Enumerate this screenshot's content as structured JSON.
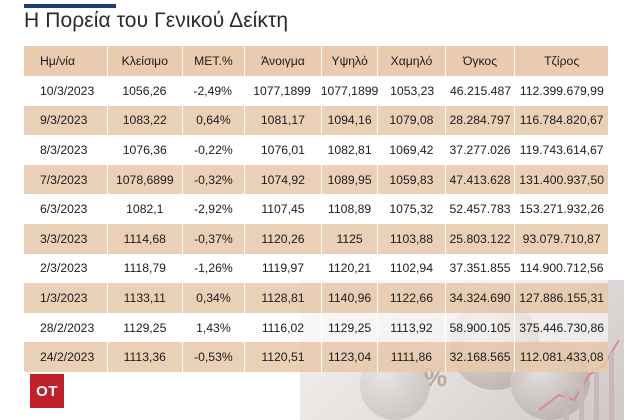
{
  "title": "Η Πορεία του Γενικού Δείκτη",
  "logo": "OT",
  "background_glyph": "%",
  "colors": {
    "header_row": "#eacbb0",
    "shaded_row": "#e8c8ac",
    "logo": "#c0202a",
    "title_rule": "#1f3c78"
  },
  "table": {
    "headers": [
      "Ημ/νία",
      "Κλείσιμο",
      "ΜΕΤ.%",
      "Άνοιγμα",
      "Υψηλό",
      "Χαμηλό",
      "Όγκος",
      "Τζίρος"
    ],
    "rows": [
      [
        "10/3/2023",
        "1056,26",
        "-2,49%",
        "1077,1899",
        "1077,1899",
        "1053,23",
        "46.215.487",
        "112.399.679,99"
      ],
      [
        "9/3/2023",
        "1083,22",
        "0,64%",
        "1081,17",
        "1094,16",
        "1079,08",
        "28.284.797",
        "116.784.820,67"
      ],
      [
        "8/3/2023",
        "1076,36",
        "-0,22%",
        "1076,01",
        "1082,81",
        "1069,42",
        "37.277.026",
        "119.743.614,67"
      ],
      [
        "7/3/2023",
        "1078,6899",
        "-0,32%",
        "1074,92",
        "1089,95",
        "1059,83",
        "47.413.628",
        "131.400.937,50"
      ],
      [
        "6/3/2023",
        "1082,1",
        "-2,92%",
        "1107,45",
        "1108,89",
        "1075,32",
        "52.457.783",
        "153.271.932,26"
      ],
      [
        "3/3/2023",
        "1114,68",
        "-0,37%",
        "1120,26",
        "1125",
        "1103,88",
        "25.803.122",
        "93.079.710,87"
      ],
      [
        "2/3/2023",
        "1118,79",
        "-1,26%",
        "1119,97",
        "1120,21",
        "1102,94",
        "37.351.855",
        "114.900.712,56"
      ],
      [
        "1/3/2023",
        "1133,11",
        "0,34%",
        "1128,81",
        "1140,96",
        "1122,66",
        "34.324.690",
        "127.886.155,31"
      ],
      [
        "28/2/2023",
        "1129,25",
        "1,43%",
        "1116,02",
        "1129,25",
        "1113,92",
        "58.900.105",
        "375.446.730,86"
      ],
      [
        "24/2/2023",
        "1113,36",
        "-0,53%",
        "1120,51",
        "1123,04",
        "1111,86",
        "32.168.565",
        "112.081.433,08"
      ]
    ]
  }
}
